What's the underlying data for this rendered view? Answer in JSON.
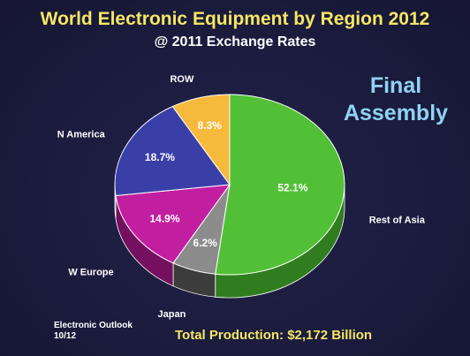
{
  "header": {
    "title": "World Electronic Equipment by Region 2012",
    "subtitle": "@ 2011 Exchange Rates"
  },
  "annotation": {
    "line1": "Final",
    "line2": "Assembly"
  },
  "footer": {
    "source_line1": "Electronic Outlook",
    "source_line2": "10/12",
    "total": "Total Production: $2,172 Billion"
  },
  "chart_data": {
    "type": "pie",
    "title": "World Electronic Equipment by Region 2012",
    "subtitle": "@ 2011 Exchange Rates",
    "unit": "%",
    "slices": [
      {
        "label": "Rest of Asia",
        "value": 52.1,
        "value_label": "52.1%",
        "color": "#52c036",
        "side_color": "#2f7d1f"
      },
      {
        "label": "Japan",
        "value": 6.2,
        "value_label": "6.2%",
        "color": "#8c8c8c",
        "side_color": "#3c3c3c"
      },
      {
        "label": "W Europe",
        "value": 14.9,
        "value_label": "14.9%",
        "color": "#c21fa0",
        "side_color": "#74105f"
      },
      {
        "label": "N America",
        "value": 18.7,
        "value_label": "18.7%",
        "color": "#3a3fa8",
        "side_color": "#20245e"
      },
      {
        "label": "ROW",
        "value": 8.3,
        "value_label": "8.3%",
        "color": "#f5b93c",
        "side_color": "#a87a1d"
      }
    ],
    "legend": "none",
    "style": "3d-pie"
  }
}
